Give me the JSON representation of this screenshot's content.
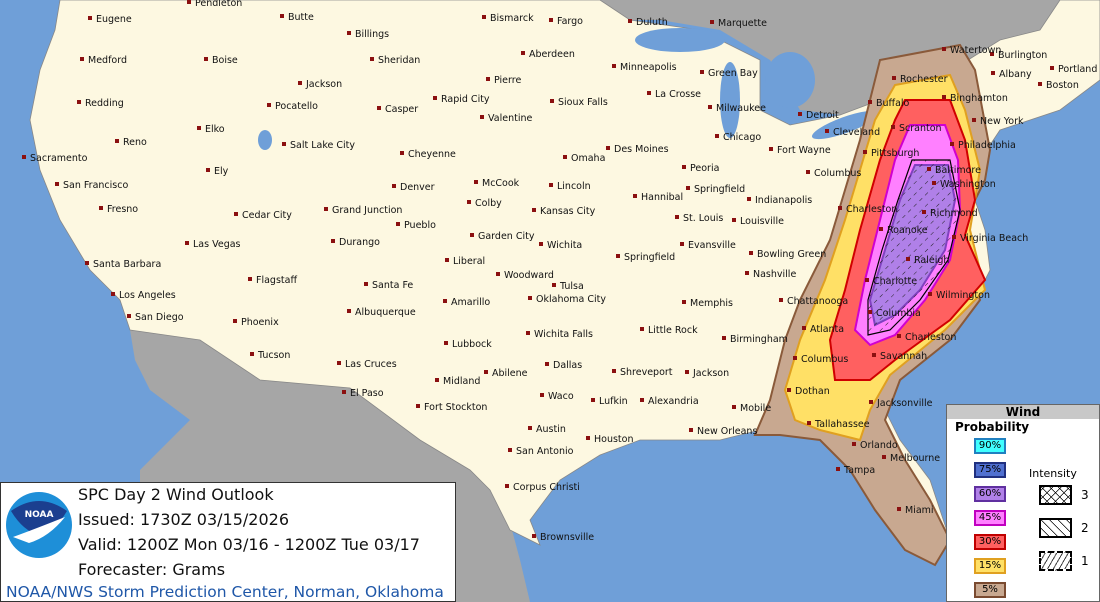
{
  "info": {
    "title": "SPC Day 2 Wind Outlook",
    "issued": "Issued: 1730Z 03/15/2026",
    "valid": "Valid: 1200Z Mon 03/16 - 1200Z Tue 03/17",
    "forecaster": "Forecaster: Grams",
    "credit": "NOAA/NWS Storm Prediction Center, Norman, Oklahoma",
    "logo_text": "NOAA"
  },
  "legend": {
    "title": "Wind",
    "probability_title": "Probability",
    "probabilities": [
      {
        "label": "90%",
        "color": "#40ffff"
      },
      {
        "label": "75%",
        "color": "#5070d0"
      },
      {
        "label": "60%",
        "color": "#b080e8"
      },
      {
        "label": "45%",
        "color": "#ff80ff"
      },
      {
        "label": "30%",
        "color": "#ff6060"
      },
      {
        "label": "15%",
        "color": "#ffe066"
      },
      {
        "label": "5%",
        "color": "#c8a890"
      }
    ],
    "intensity_title": "Intensity",
    "intensities": [
      {
        "label": "3",
        "pattern": "cross-hatch"
      },
      {
        "label": "2",
        "pattern": "diagonal-hatch"
      },
      {
        "label": "1",
        "pattern": "dashed-hatch"
      }
    ]
  },
  "colors": {
    "land": "#fdf8e1",
    "water": "#6f9fd8",
    "foreign_land": "#a6a6a6",
    "city_marker": "#8b1010"
  },
  "cities": [
    "Pendleton",
    "Eugene",
    "Butte",
    "Billings",
    "Bismarck",
    "Fargo",
    "Duluth",
    "Marquette",
    "Burlington",
    "Portland",
    "Medford",
    "Boise",
    "Sheridan",
    "Aberdeen",
    "Minneapolis",
    "Green Bay",
    "Watertown",
    "Albany",
    "Boston",
    "Jackson",
    "Pierre",
    "Rochester",
    "Pocatello",
    "Casper",
    "Rapid City",
    "Sioux Falls",
    "La Crosse",
    "Milwaukee",
    "Detroit",
    "Buffalo",
    "Binghamton",
    "Redding",
    "Reno",
    "Elko",
    "Salt Lake City",
    "Valentine",
    "Chicago",
    "Cleveland",
    "Scranton",
    "New York",
    "Sacramento",
    "Cheyenne",
    "Omaha",
    "Des Moines",
    "Fort Wayne",
    "Pittsburgh",
    "Philadelphia",
    "San Francisco",
    "Ely",
    "Denver",
    "McCook",
    "Lincoln",
    "Peoria",
    "Columbus",
    "Baltimore",
    "Washington",
    "Fresno",
    "Cedar City",
    "Grand Junction",
    "Colby",
    "Kansas City",
    "Hannibal",
    "Springfield",
    "Indianapolis",
    "Charleston",
    "Richmond",
    "Pueblo",
    "Garden City",
    "Wichita",
    "St. Louis",
    "Louisville",
    "Roanoke",
    "Las Vegas",
    "Durango",
    "Evansville",
    "Bowling Green",
    "Virginia Beach",
    "Raleigh",
    "Santa Barbara",
    "Liberal",
    "Woodward",
    "Tulsa",
    "Springfield",
    "Nashville",
    "Flagstaff",
    "Santa Fe",
    "Los Angeles",
    "Memphis",
    "Chattanooga",
    "Charlotte",
    "Wilmington",
    "Oklahoma City",
    "Amarillo",
    "Albuquerque",
    "San Diego",
    "Phoenix",
    "Columbia",
    "Little Rock",
    "Birmingham",
    "Atlanta",
    "Charleston",
    "Savannah",
    "Wichita Falls",
    "Lubbock",
    "Tucson",
    "Las Cruces",
    "Columbus",
    "Abilene",
    "Dallas",
    "Shreveport",
    "Jackson",
    "Midland",
    "El Paso",
    "Waco",
    "Dothan",
    "Jacksonville",
    "Fort Stockton",
    "Lufkin",
    "Alexandria",
    "Mobile",
    "Tallahassee",
    "Austin",
    "New Orleans",
    "Houston",
    "San Antonio",
    "Orlando",
    "Melbourne",
    "Tampa",
    "Corpus Christi",
    "Miami",
    "Brownsville"
  ]
}
